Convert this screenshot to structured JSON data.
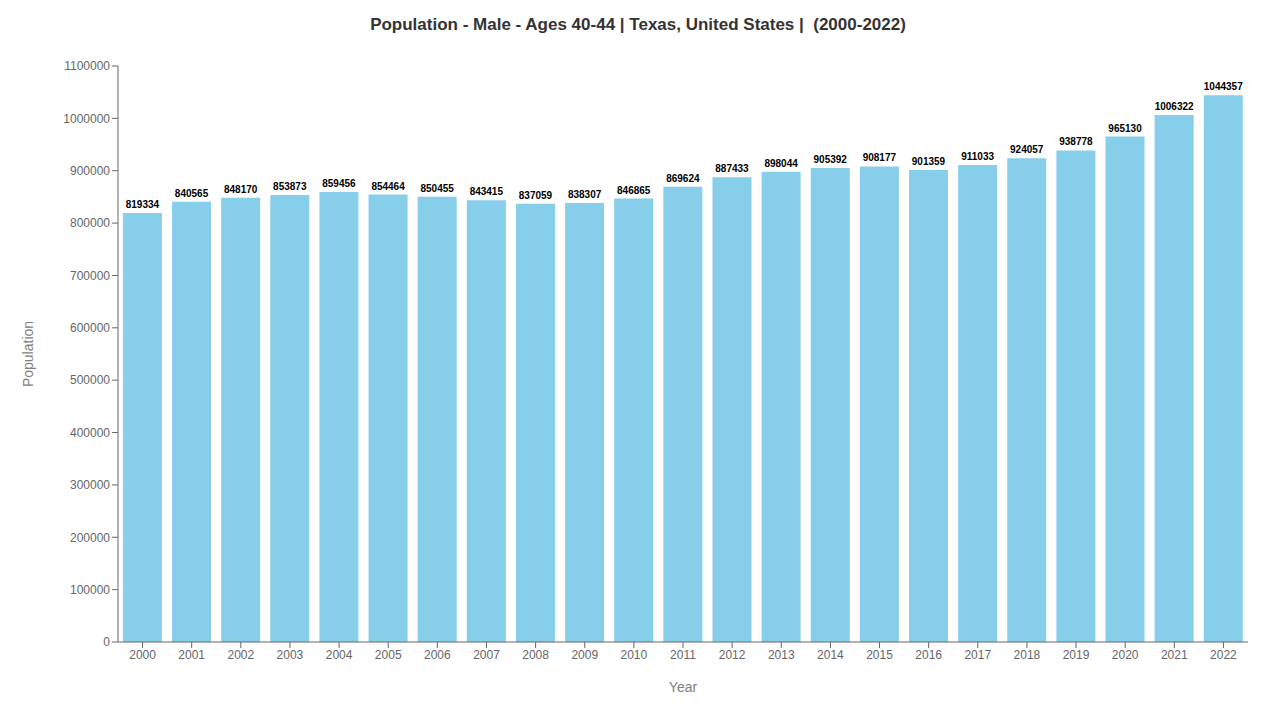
{
  "chart_data": {
    "type": "bar",
    "title": "Population - Male - Ages 40-44 | Texas, United States |  (2000-2022)",
    "xlabel": "Year",
    "ylabel": "Population",
    "categories": [
      "2000",
      "2001",
      "2002",
      "2003",
      "2004",
      "2005",
      "2006",
      "2007",
      "2008",
      "2009",
      "2010",
      "2011",
      "2012",
      "2013",
      "2014",
      "2015",
      "2016",
      "2017",
      "2018",
      "2019",
      "2020",
      "2021",
      "2022"
    ],
    "values": [
      819334,
      840565,
      848170,
      853873,
      859456,
      854464,
      850455,
      843415,
      837059,
      838307,
      846865,
      869624,
      887433,
      898044,
      905392,
      908177,
      901359,
      911033,
      924057,
      938778,
      965130,
      1006322,
      1044357
    ],
    "color": "#87CEEB",
    "ylim": [
      0,
      1100000
    ],
    "yticks": [
      0,
      100000,
      200000,
      300000,
      400000,
      500000,
      600000,
      700000,
      800000,
      900000,
      1000000,
      1100000
    ],
    "grid": false,
    "data_labels": true
  }
}
